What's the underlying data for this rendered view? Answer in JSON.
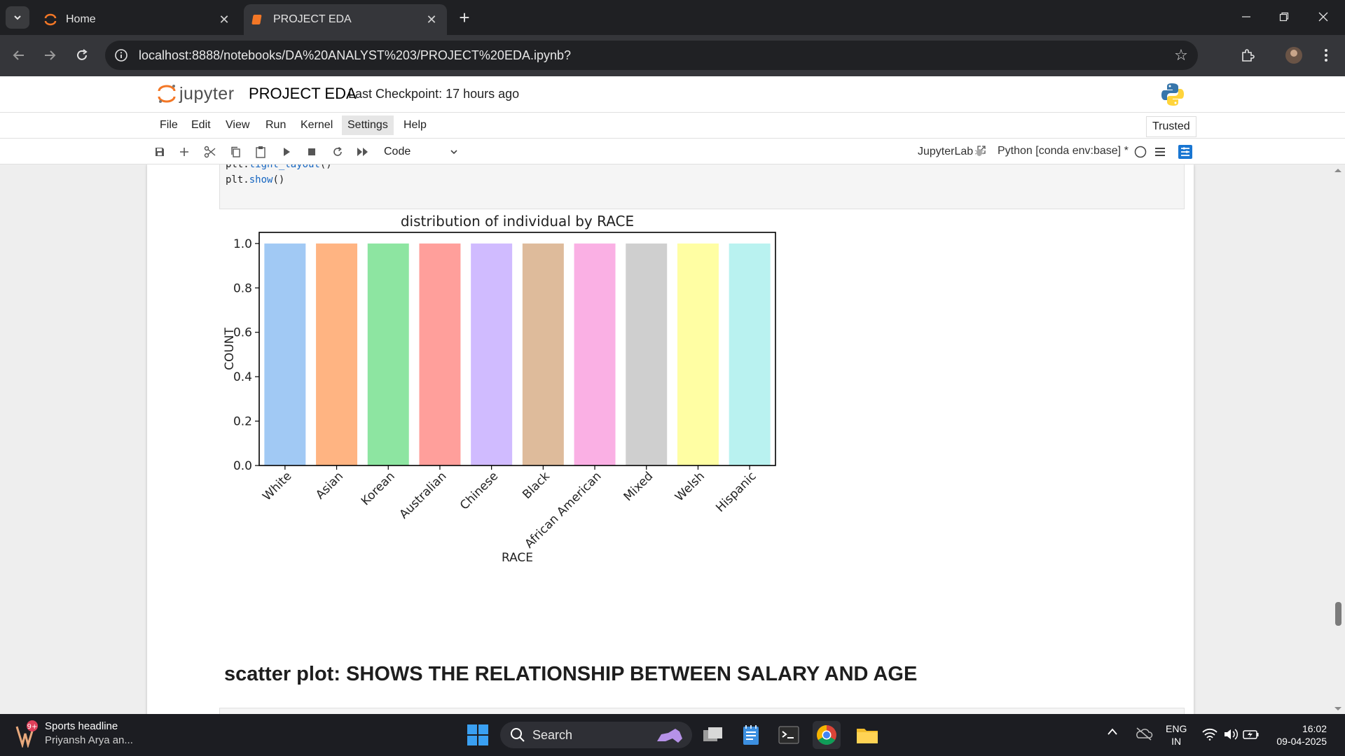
{
  "browser": {
    "tabs": [
      {
        "title": "Home",
        "active": false
      },
      {
        "title": "PROJECT EDA",
        "active": true
      }
    ],
    "url": "localhost:8888/notebooks/DA%20ANALYST%203/PROJECT%20EDA.ipynb?"
  },
  "jupyter": {
    "logo_text": "jupyter",
    "notebook_name": "PROJECT EDA",
    "checkpoint": "Last Checkpoint: 17 hours ago",
    "menu": [
      "File",
      "Edit",
      "View",
      "Run",
      "Kernel",
      "Settings",
      "Help"
    ],
    "highlighted_menu": "Settings",
    "trusted_label": "Trusted",
    "cell_type": "Code",
    "jupyterlab_label": "JupyterLab",
    "kernel_label": "Python [conda env:base] *"
  },
  "code_cell": {
    "line1_obj": "plt.",
    "line1_fn": "tight_layout",
    "line1_end": "()",
    "line2_obj": "plt.",
    "line2_fn": "show",
    "line2_end": "()"
  },
  "chart_data": {
    "type": "bar",
    "title": "distribution of individual by RACE",
    "xlabel": "RACE",
    "ylabel": "COUNT",
    "categories": [
      "White",
      "Asian",
      "Korean",
      "Australian",
      "Chinese",
      "Black",
      "African American",
      "Mixed",
      "Welsh",
      "Hispanic"
    ],
    "values": [
      1.0,
      1.0,
      1.0,
      1.0,
      1.0,
      1.0,
      1.0,
      1.0,
      1.0,
      1.0
    ],
    "colors": [
      "#a1c9f4",
      "#ffb482",
      "#8de5a1",
      "#ff9f9b",
      "#d0bbff",
      "#debb9b",
      "#fab0e4",
      "#cfcfcf",
      "#fffea3",
      "#b9f2f0"
    ],
    "yticks": [
      "0.0",
      "0.2",
      "0.4",
      "0.6",
      "0.8",
      "1.0"
    ],
    "ylim": [
      0,
      1.05
    ],
    "grid": false
  },
  "markdown_heading": "scatter plot: SHOWS THE RELATIONSHIP BETWEEN SALARY AND AGE",
  "taskbar": {
    "widget_title": "Sports headline",
    "widget_subtitle": "Priyansh Arya an...",
    "widget_badge": "9+",
    "search_label": "Search",
    "lang_top": "ENG",
    "lang_bottom": "IN",
    "time": "16:02",
    "date": "09-04-2025"
  }
}
